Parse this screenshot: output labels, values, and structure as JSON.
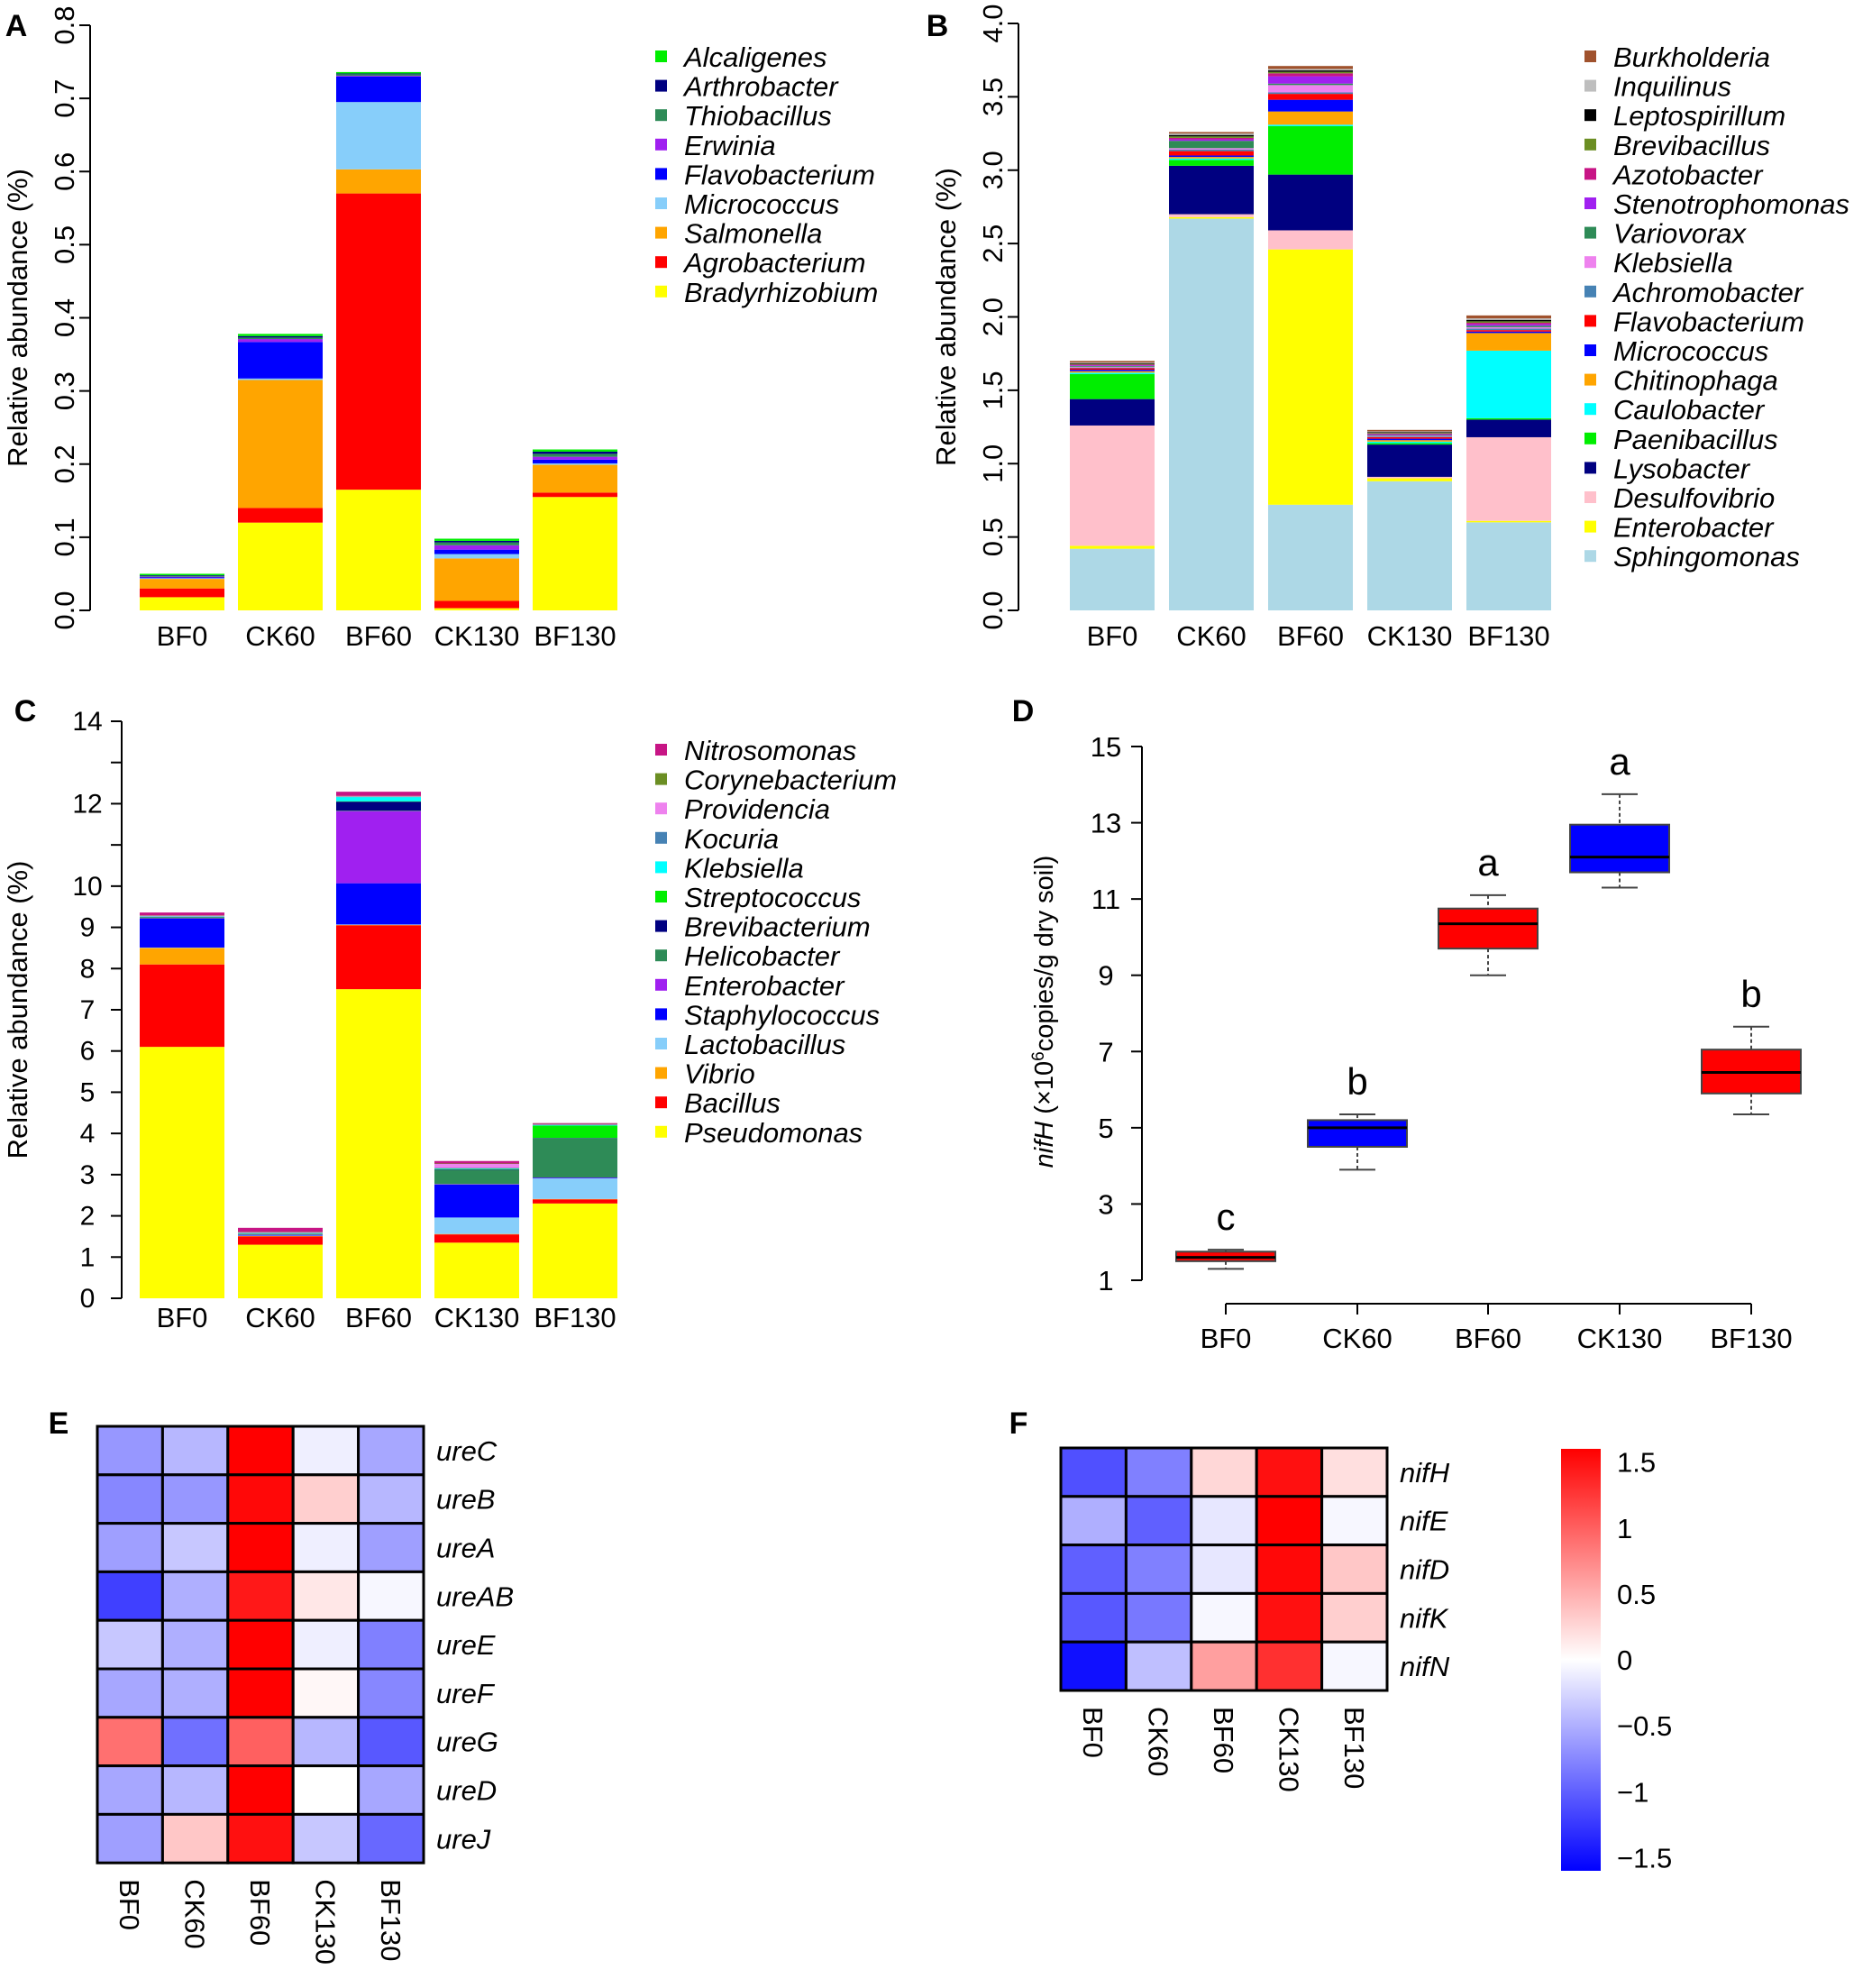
{
  "chart_data": [
    {
      "panel": "A",
      "type": "bar",
      "stacked": true,
      "ylabel": "Relative abundance (%)",
      "ylim": [
        0,
        0.8
      ],
      "yticks": [
        "0.0",
        "0.1",
        "0.2",
        "0.3",
        "0.4",
        "0.5",
        "0.6",
        "0.7",
        "0.8"
      ],
      "categories": [
        "BF0",
        "CK60",
        "BF60",
        "CK130",
        "BF130"
      ],
      "series": [
        {
          "name": "Bradyrhizobium",
          "color": "#FFFF00",
          "values": [
            0.018,
            0.12,
            0.165,
            0.003,
            0.155
          ]
        },
        {
          "name": "Agrobacterium",
          "color": "#FF0000",
          "values": [
            0.012,
            0.02,
            0.405,
            0.01,
            0.006
          ]
        },
        {
          "name": "Salmonella",
          "color": "#FFA500",
          "values": [
            0.013,
            0.175,
            0.033,
            0.058,
            0.038
          ]
        },
        {
          "name": "Micrococcus",
          "color": "#87CEFA",
          "values": [
            0.001,
            0.002,
            0.092,
            0.006,
            0.002
          ]
        },
        {
          "name": "Flavobacterium",
          "color": "#0000FF",
          "values": [
            0.001,
            0.05,
            0.035,
            0.006,
            0.005
          ]
        },
        {
          "name": "Erwinia",
          "color": "#A020F0",
          "values": [
            0.001,
            0.004,
            0.001,
            0.006,
            0.004
          ]
        },
        {
          "name": "Thiobacillus",
          "color": "#2E8B57",
          "values": [
            0.001,
            0.002,
            0.002,
            0.004,
            0.004
          ]
        },
        {
          "name": "Arthrobacter",
          "color": "#000080",
          "values": [
            0.001,
            0.002,
            0.001,
            0.002,
            0.003
          ]
        },
        {
          "name": "Alcaligenes",
          "color": "#00EE00",
          "values": [
            0.002,
            0.003,
            0.002,
            0.003,
            0.003
          ]
        }
      ]
    },
    {
      "panel": "B",
      "type": "bar",
      "stacked": true,
      "ylabel": "Relative abundance (%)",
      "ylim": [
        0,
        4.0
      ],
      "yticks": [
        "0.0",
        "0.5",
        "1.0",
        "1.5",
        "2.0",
        "2.5",
        "3.0",
        "3.5",
        "4.0"
      ],
      "categories": [
        "BF0",
        "CK60",
        "BF60",
        "CK130",
        "BF130"
      ],
      "series": [
        {
          "name": "Sphingomonas",
          "color": "#ADD8E6",
          "values": [
            0.42,
            2.67,
            0.72,
            0.88,
            0.6
          ]
        },
        {
          "name": "Enterobacter",
          "color": "#FFFF00",
          "values": [
            0.02,
            0.01,
            1.74,
            0.02,
            0.01
          ]
        },
        {
          "name": "Desulfovibrio",
          "color": "#FFC0CB",
          "values": [
            0.82,
            0.02,
            0.13,
            0.01,
            0.57
          ]
        },
        {
          "name": "Lysobacter",
          "color": "#000080",
          "values": [
            0.18,
            0.33,
            0.38,
            0.22,
            0.12
          ]
        },
        {
          "name": "Paenibacillus",
          "color": "#00EE00",
          "values": [
            0.17,
            0.04,
            0.33,
            0.01,
            0.01
          ]
        },
        {
          "name": "Caulobacter",
          "color": "#00FFFF",
          "values": [
            0.01,
            0.01,
            0.01,
            0.01,
            0.46
          ]
        },
        {
          "name": "Chitinophaga",
          "color": "#FFA500",
          "values": [
            0.01,
            0.01,
            0.09,
            0.01,
            0.12
          ]
        },
        {
          "name": "Micrococcus",
          "color": "#0000FF",
          "values": [
            0.01,
            0.01,
            0.08,
            0.01,
            0.01
          ]
        },
        {
          "name": "Flavobacterium",
          "color": "#FF0000",
          "values": [
            0.01,
            0.03,
            0.04,
            0.01,
            0.01
          ]
        },
        {
          "name": "Achromobacter",
          "color": "#4682B4",
          "values": [
            0.005,
            0.01,
            0.01,
            0.005,
            0.01
          ]
        },
        {
          "name": "Klebsiella",
          "color": "#EE82EE",
          "values": [
            0.005,
            0.01,
            0.05,
            0.005,
            0.01
          ]
        },
        {
          "name": "Variovorax",
          "color": "#2E8B57",
          "values": [
            0.005,
            0.05,
            0.01,
            0.005,
            0.01
          ]
        },
        {
          "name": "Stenotrophomonas",
          "color": "#A020F0",
          "values": [
            0.005,
            0.01,
            0.05,
            0.005,
            0.01
          ]
        },
        {
          "name": "Azotobacter",
          "color": "#C71585",
          "values": [
            0.005,
            0.01,
            0.02,
            0.005,
            0.01
          ]
        },
        {
          "name": "Brevibacillus",
          "color": "#6B8E23",
          "values": [
            0.005,
            0.01,
            0.01,
            0.005,
            0.01
          ]
        },
        {
          "name": "Leptospirillum",
          "color": "#000000",
          "values": [
            0.005,
            0.01,
            0.01,
            0.005,
            0.01
          ]
        },
        {
          "name": "Inquilinus",
          "color": "#BEBEBE",
          "values": [
            0.005,
            0.01,
            0.01,
            0.005,
            0.01
          ]
        },
        {
          "name": "Burkholderia",
          "color": "#A0522D",
          "values": [
            0.01,
            0.01,
            0.02,
            0.01,
            0.02
          ]
        }
      ]
    },
    {
      "panel": "C",
      "type": "bar",
      "stacked": true,
      "ylabel": "Relative abundance (%)",
      "ylim": [
        0,
        14
      ],
      "yticks": [
        "0",
        "1",
        "2",
        "3",
        "4",
        "5",
        "6",
        "7",
        "8",
        "9",
        "10",
        "12",
        "14"
      ],
      "categories": [
        "BF0",
        "CK60",
        "BF60",
        "CK130",
        "BF130"
      ],
      "series": [
        {
          "name": "Pseudomonas",
          "color": "#FFFF00",
          "values": [
            6.1,
            1.3,
            7.5,
            1.35,
            2.3
          ]
        },
        {
          "name": "Bacillus",
          "color": "#FF0000",
          "values": [
            2.0,
            0.2,
            1.55,
            0.2,
            0.1
          ]
        },
        {
          "name": "Vibrio",
          "color": "#FFA500",
          "values": [
            0.4,
            0.01,
            0.01,
            0.01,
            0.01
          ]
        },
        {
          "name": "Lactobacillus",
          "color": "#87CEFA",
          "values": [
            0.01,
            0.01,
            0.01,
            0.4,
            0.5
          ]
        },
        {
          "name": "Staphylococcus",
          "color": "#0000FF",
          "values": [
            0.7,
            0.01,
            1.0,
            0.8,
            0.01
          ]
        },
        {
          "name": "Enterobacter",
          "color": "#A020F0",
          "values": [
            0.01,
            0.01,
            1.75,
            0.01,
            0.01
          ]
        },
        {
          "name": "Helicobacter",
          "color": "#2E8B57",
          "values": [
            0.01,
            0.01,
            0.01,
            0.35,
            0.95
          ]
        },
        {
          "name": "Brevibacterium",
          "color": "#000080",
          "values": [
            0.01,
            0.01,
            0.22,
            0.01,
            0.01
          ]
        },
        {
          "name": "Streptococcus",
          "color": "#00EE00",
          "values": [
            0.01,
            0.01,
            0.01,
            0.01,
            0.3
          ]
        },
        {
          "name": "Klebsiella",
          "color": "#00FFFF",
          "values": [
            0.01,
            0.01,
            0.1,
            0.01,
            0.01
          ]
        },
        {
          "name": "Kocuria",
          "color": "#4682B4",
          "values": [
            0.01,
            0.01,
            0.01,
            0.01,
            0.01
          ]
        },
        {
          "name": "Providencia",
          "color": "#EE82EE",
          "values": [
            0.01,
            0.01,
            0.01,
            0.1,
            0.01
          ]
        },
        {
          "name": "Corynebacterium",
          "color": "#6B8E23",
          "values": [
            0.01,
            0.01,
            0.01,
            0.01,
            0.01
          ]
        },
        {
          "name": "Nitrosomonas",
          "color": "#C71585",
          "values": [
            0.07,
            0.1,
            0.1,
            0.06,
            0.02
          ]
        }
      ]
    },
    {
      "panel": "D",
      "type": "box",
      "ylabel_gene": "nifH",
      "ylabel_open": " (×10",
      "ylabel_exp": "6",
      "ylabel_rest": "copies/g dry soil)",
      "ylim": [
        1,
        15
      ],
      "yticks": [
        "1",
        "3",
        "5",
        "7",
        "9",
        "11",
        "13",
        "15"
      ],
      "categories": [
        "BF0",
        "CK60",
        "BF60",
        "CK130",
        "BF130"
      ],
      "boxes": [
        {
          "min": 1.3,
          "q1": 1.5,
          "median": 1.6,
          "q3": 1.75,
          "max": 1.8,
          "color": "#FF0000",
          "letter": "c"
        },
        {
          "min": 3.9,
          "q1": 4.5,
          "median": 5.0,
          "q3": 5.2,
          "max": 5.35,
          "color": "#0000FF",
          "letter": "b"
        },
        {
          "min": 9.0,
          "q1": 9.7,
          "median": 10.35,
          "q3": 10.75,
          "max": 11.1,
          "color": "#FF0000",
          "letter": "a"
        },
        {
          "min": 11.3,
          "q1": 11.7,
          "median": 12.1,
          "q3": 12.95,
          "max": 13.75,
          "color": "#0000FF",
          "letter": "a"
        },
        {
          "min": 5.35,
          "q1": 5.9,
          "median": 6.45,
          "q3": 7.05,
          "max": 7.65,
          "color": "#FF0000",
          "letter": "b"
        }
      ]
    },
    {
      "panel": "E",
      "type": "heatmap",
      "columns": [
        "BF0",
        "CK60",
        "BF60",
        "CK130",
        "BF130"
      ],
      "rows": [
        "ureC",
        "ureB",
        "ureA",
        "ureAB",
        "ureE",
        "ureF",
        "ureG",
        "ureD",
        "ureJ"
      ],
      "values": [
        [
          -0.65,
          -0.45,
          1.6,
          -0.1,
          -0.55
        ],
        [
          -0.75,
          -0.65,
          1.55,
          0.3,
          -0.45
        ],
        [
          -0.6,
          -0.35,
          1.6,
          -0.1,
          -0.6
        ],
        [
          -1.2,
          -0.5,
          1.45,
          0.15,
          -0.05
        ],
        [
          -0.35,
          -0.5,
          1.6,
          -0.1,
          -0.8
        ],
        [
          -0.55,
          -0.5,
          1.6,
          0.05,
          -0.75
        ],
        [
          0.9,
          -0.9,
          1.0,
          -0.45,
          -1.05
        ],
        [
          -0.55,
          -0.45,
          1.6,
          0.0,
          -0.55
        ],
        [
          -0.6,
          0.35,
          1.5,
          -0.35,
          -0.95
        ]
      ]
    },
    {
      "panel": "F",
      "type": "heatmap",
      "columns": [
        "BF0",
        "CK60",
        "BF60",
        "CK130",
        "BF130"
      ],
      "rows": [
        "nifH",
        "nifE",
        "nifD",
        "nifK",
        "nifN"
      ],
      "values": [
        [
          -1.1,
          -0.8,
          0.25,
          1.5,
          0.2
        ],
        [
          -0.5,
          -1.0,
          -0.15,
          1.6,
          -0.05
        ],
        [
          -1.0,
          -0.8,
          -0.15,
          1.55,
          0.35
        ],
        [
          -1.05,
          -0.85,
          -0.05,
          1.5,
          0.3
        ],
        [
          -1.5,
          -0.4,
          0.6,
          1.3,
          -0.05
        ]
      ]
    }
  ],
  "colorbar": {
    "ticks": [
      1.5,
      1,
      0.5,
      0,
      -0.5,
      -1,
      -1.5
    ],
    "tick_labels": [
      "1.5",
      "1",
      "0.5",
      "0",
      "−0.5",
      "−1",
      "−1.5"
    ],
    "low_color": "#0000FF",
    "mid_color": "#FFFFFF",
    "high_color": "#FF0000"
  },
  "panel_labels": [
    "A",
    "B",
    "C",
    "D",
    "E",
    "F"
  ]
}
